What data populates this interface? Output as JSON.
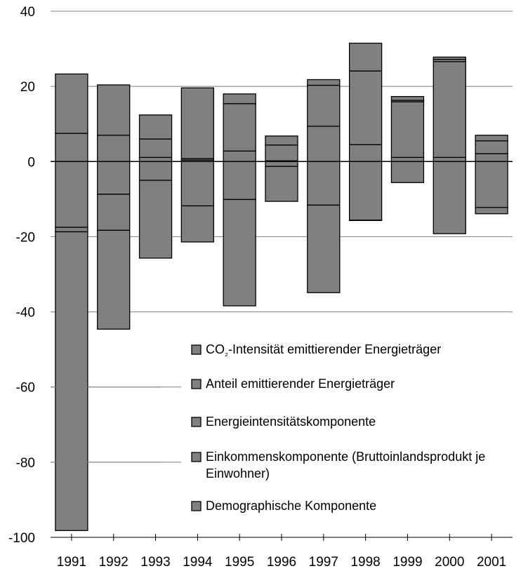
{
  "chart_data": {
    "type": "bar",
    "stacked": true,
    "categories": [
      "1991",
      "1992",
      "1993",
      "1994",
      "1995",
      "1996",
      "1997",
      "1998",
      "1999",
      "2000",
      "2001"
    ],
    "ylim": [
      -100,
      40
    ],
    "yticks": [
      40,
      20,
      0,
      -20,
      -40,
      -60,
      -80,
      -100
    ],
    "grid": "horizontal",
    "legend_placement": "lower-right",
    "series_color": "#808080",
    "series": [
      {
        "name": "CO₂-Intensität emittierender Energieträger",
        "values": [
          -17.5,
          -8.7,
          1.1,
          0.4,
          2.8,
          0.2,
          9.4,
          4.5,
          1.1,
          1.1,
          2.1
        ]
      },
      {
        "name": "Anteil emittierender Energieträger",
        "values": [
          -1.2,
          -9.6,
          -5.0,
          0.4,
          -10.1,
          -1.3,
          -11.6,
          -15.6,
          -5.6,
          25.5,
          -12.2
        ]
      },
      {
        "name": "Energieintensitätskomponente",
        "values": [
          -79.5,
          -26.3,
          4.9,
          -11.8,
          -28.3,
          -9.3,
          10.9,
          19.6,
          14.8,
          -19.2,
          3.4
        ]
      },
      {
        "name": "Einkommenskomponente (Bruttoinlandsprodukt je Einwohner)",
        "values": [
          7.5,
          7.0,
          6.4,
          18.8,
          12.6,
          4.2,
          1.5,
          -0.1,
          0.4,
          0.6,
          1.5
        ]
      },
      {
        "name": "Demographische Komponente",
        "values": [
          15.8,
          13.4,
          -20.7,
          -9.6,
          2.6,
          2.4,
          -23.3,
          7.4,
          1.0,
          0.6,
          -1.7
        ]
      }
    ],
    "legend": [
      "CO₂-Intensität emittierender Energieträger",
      "Anteil emittierender Energieträger",
      "Energieintensitätskomponente",
      "Einkommenskomponente (Bruttoinlandsprodukt je Einwohner)",
      "Demographische Komponente"
    ],
    "legend_render": [
      [
        "CO",
        "₂",
        "-Intensität emittierender Energieträger"
      ],
      [
        "Anteil emittierender Energieträger"
      ],
      [
        "Energieintensitätskomponente"
      ],
      [
        "Einkommenskomponente (Bruttoinlandsprodukt je",
        "Einwohner)"
      ],
      [
        "Demographische Komponente"
      ]
    ]
  }
}
